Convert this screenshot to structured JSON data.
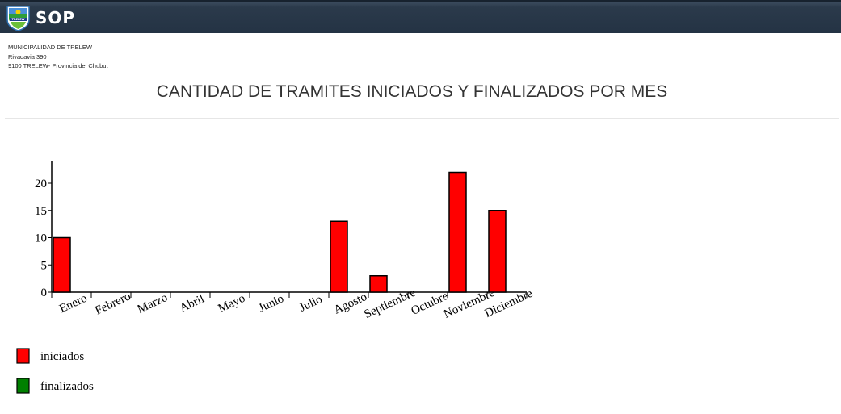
{
  "header": {
    "brand": "SOP",
    "logo_text": "TRELEW",
    "bar_color": "#243344"
  },
  "address": {
    "line1": "MUNICIPALIDAD DE TRELEW",
    "line2": "Rivadavia 390",
    "line3": "9100 TRELEW- Provincia del Chubut"
  },
  "page": {
    "title": "CANTIDAD DE TRAMITES INICIADOS Y FINALIZADOS POR MES"
  },
  "chart_data": {
    "type": "bar",
    "categories": [
      "Enero",
      "Febrero",
      "Marzo",
      "Abril",
      "Mayo",
      "Junio",
      "Julio",
      "Agosto",
      "Septiembre",
      "Octubre",
      "Noviembre",
      "Diciembre"
    ],
    "series": [
      {
        "name": "iniciados",
        "color": "#ff0000",
        "values": [
          10,
          0,
          0,
          0,
          0,
          0,
          0,
          13,
          3,
          0,
          22,
          15
        ]
      },
      {
        "name": "finalizados",
        "color": "#008000",
        "values": [
          0,
          0,
          0,
          0,
          0,
          0,
          0,
          0,
          0,
          0,
          0,
          0
        ]
      }
    ],
    "yticks": [
      0,
      5,
      10,
      15,
      20
    ],
    "ylim": [
      0,
      24
    ],
    "xlabel": "",
    "ylabel": "",
    "legend_position": "bottom-left",
    "grid": false
  }
}
